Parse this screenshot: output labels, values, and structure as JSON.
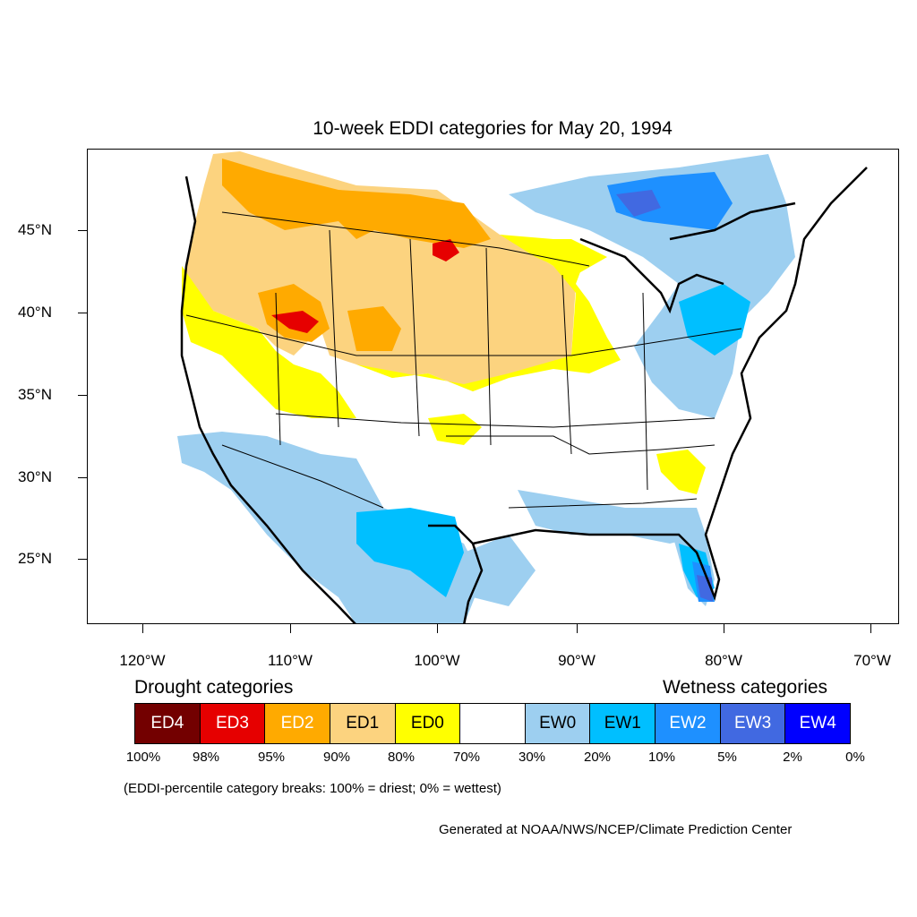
{
  "title": "10-week EDDI categories for May 20, 1994",
  "lat_labels": [
    "45°N",
    "40°N",
    "35°N",
    "30°N",
    "25°N"
  ],
  "lon_labels": [
    "120°W",
    "110°W",
    "100°W",
    "90°W",
    "80°W",
    "70°W"
  ],
  "legend": {
    "drought_heading": "Drought categories",
    "wetness_heading": "Wetness categories",
    "categories": [
      {
        "label": "ED4",
        "color": "#730000",
        "text_color": "#ffffff"
      },
      {
        "label": "ED3",
        "color": "#e60000",
        "text_color": "#ffffff"
      },
      {
        "label": "ED2",
        "color": "#ffaa00",
        "text_color": "#ffffff"
      },
      {
        "label": "ED1",
        "color": "#fcd37f",
        "text_color": "#000000"
      },
      {
        "label": "ED0",
        "color": "#ffff00",
        "text_color": "#000000"
      },
      {
        "label": "",
        "color": "#ffffff",
        "text_color": "#000000"
      },
      {
        "label": "EW0",
        "color": "#9dcff0",
        "text_color": "#000000"
      },
      {
        "label": "EW1",
        "color": "#00bfff",
        "text_color": "#000000"
      },
      {
        "label": "EW2",
        "color": "#1e90ff",
        "text_color": "#ffffff"
      },
      {
        "label": "EW3",
        "color": "#4169e1",
        "text_color": "#ffffff"
      },
      {
        "label": "EW4",
        "color": "#0000ff",
        "text_color": "#ffffff"
      }
    ],
    "breaks": [
      "100%",
      "98%",
      "95%",
      "90%",
      "80%",
      "70%",
      "30%",
      "20%",
      "10%",
      "5%",
      "2%",
      "0%"
    ]
  },
  "note": "(EDDI-percentile category breaks: 100% = driest; 0% = wettest)",
  "credit": "Generated at NOAA/NWS/NCEP/Climate Prediction Center"
}
